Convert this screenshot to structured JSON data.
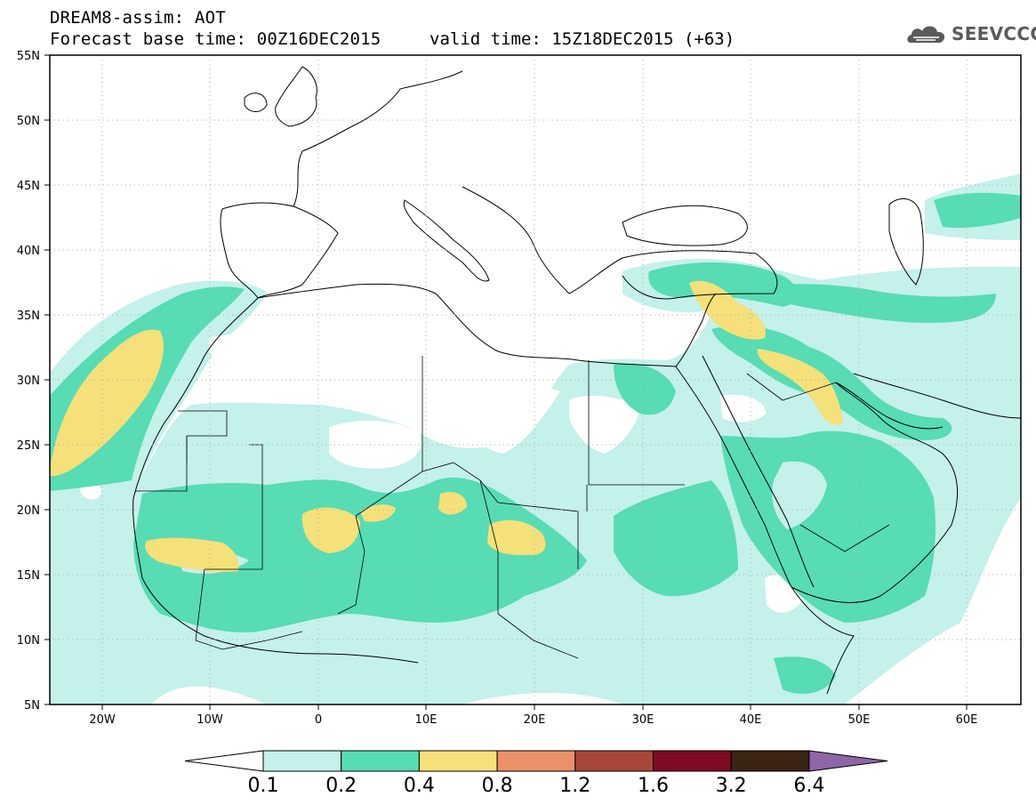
{
  "header": {
    "title": "DREAM8-assim: AOT",
    "base_time": "Forecast base time: 00Z16DEC2015",
    "valid_time": "valid time: 15Z18DEC2015 (+63)"
  },
  "logo": {
    "text": "SEEVCCC",
    "icon": "cloud-icon"
  },
  "map": {
    "lat_labels": [
      "55N",
      "50N",
      "45N",
      "40N",
      "35N",
      "30N",
      "25N",
      "20N",
      "15N",
      "10N",
      "5N"
    ],
    "lon_labels": [
      "20W",
      "10W",
      "0",
      "10E",
      "20E",
      "30E",
      "40E",
      "50E",
      "60E"
    ],
    "lon_range": [
      -25,
      65
    ],
    "lat_range": [
      5,
      55
    ]
  },
  "colorbar": {
    "labels": [
      "0.1",
      "0.2",
      "0.4",
      "0.8",
      "1.2",
      "1.6",
      "3.2",
      "6.4"
    ],
    "colors": [
      "#ffffff",
      "#c4f1ea",
      "#57dcb4",
      "#f5e07a",
      "#e9916a",
      "#a7473a",
      "#7e0a23",
      "#3a2414",
      "#8f65a8"
    ]
  },
  "colors": {
    "level1": "#c4f1ea",
    "level2": "#57dcb4",
    "level3": "#f5e07a",
    "coast": "#000000"
  }
}
